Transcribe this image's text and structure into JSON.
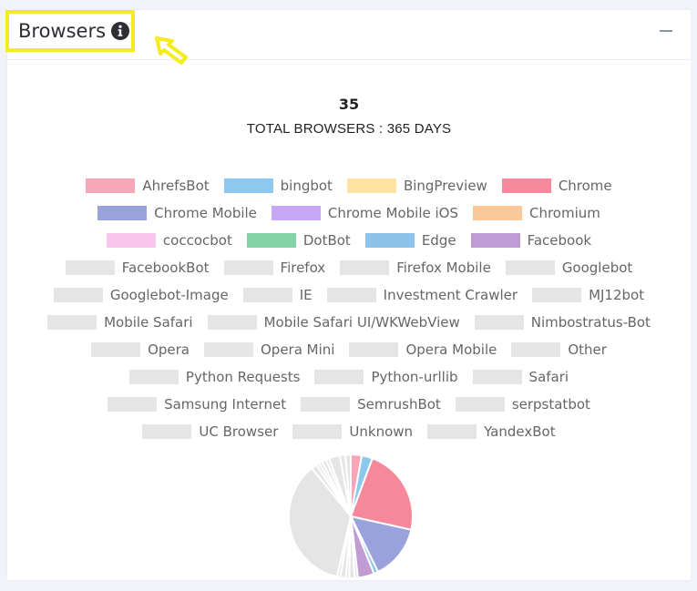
{
  "header": {
    "title": "Browsers",
    "info_icon": "info-circle-icon",
    "arrow_icon": "pointer-arrow-icon",
    "collapse_icon": "minus-icon",
    "highlight_color": "#f4ec1c"
  },
  "summary": {
    "total": "35",
    "subtitle": "TOTAL BROWSERS : 365 DAYS"
  },
  "legend_rows": [
    [
      0,
      1,
      2,
      3
    ],
    [
      4,
      5,
      6
    ],
    [
      7,
      8,
      9,
      10
    ],
    [
      11,
      12,
      13,
      14
    ],
    [
      15,
      16,
      17,
      18
    ],
    [
      19,
      20,
      21
    ],
    [
      22,
      23,
      24,
      25
    ],
    [
      26,
      27,
      28
    ],
    [
      29,
      30,
      31
    ],
    [
      32,
      33,
      34
    ]
  ],
  "chart_data": {
    "type": "pie",
    "title": "",
    "series": [
      {
        "name": "AhrefsBot",
        "color": "#f7a6b7",
        "value": 1
      },
      {
        "name": "bingbot",
        "color": "#8fc8ee",
        "value": 1
      },
      {
        "name": "BingPreview",
        "color": "#fde2a0",
        "value": 0
      },
      {
        "name": "Chrome",
        "color": "#f5899b",
        "value": 8
      },
      {
        "name": "Chrome Mobile",
        "color": "#9aa2dc",
        "value": 5
      },
      {
        "name": "Chrome Mobile iOS",
        "color": "#c8a8f4",
        "value": 0
      },
      {
        "name": "Chromium",
        "color": "#fbc89a",
        "value": 0
      },
      {
        "name": "coccocbot",
        "color": "#f8c5ee",
        "value": 0
      },
      {
        "name": "DotBot",
        "color": "#84d2a6",
        "value": 0
      },
      {
        "name": "Edge",
        "color": "#8dc3ea",
        "value": 0.4
      },
      {
        "name": "Facebook",
        "color": "#c19bd4",
        "value": 1.5
      },
      {
        "name": "FacebookBot",
        "color": "#e5e5e5",
        "value": 0.3
      },
      {
        "name": "Firefox",
        "color": "#e5e5e5",
        "value": 0.5
      },
      {
        "name": "Firefox Mobile",
        "color": "#e5e5e5",
        "value": 0.3
      },
      {
        "name": "Googlebot",
        "color": "#e5e5e5",
        "value": 0.5
      },
      {
        "name": "Googlebot-Image",
        "color": "#e5e5e5",
        "value": 0.3
      },
      {
        "name": "IE",
        "color": "#e5e5e5",
        "value": 0
      },
      {
        "name": "Investment Crawler",
        "color": "#e5e5e5",
        "value": 0
      },
      {
        "name": "MJ12bot",
        "color": "#e5e5e5",
        "value": 0
      },
      {
        "name": "Mobile Safari",
        "color": "#e5e5e5",
        "value": 12.5
      },
      {
        "name": "Mobile Safari UI/WKWebView",
        "color": "#e5e5e5",
        "value": 0.5
      },
      {
        "name": "Nimbostratus-Bot",
        "color": "#e5e5e5",
        "value": 0.3
      },
      {
        "name": "Opera",
        "color": "#e5e5e5",
        "value": 0.3
      },
      {
        "name": "Opera Mini",
        "color": "#e5e5e5",
        "value": 0
      },
      {
        "name": "Opera Mobile",
        "color": "#e5e5e5",
        "value": 0
      },
      {
        "name": "Other",
        "color": "#e5e5e5",
        "value": 0.4
      },
      {
        "name": "Python Requests",
        "color": "#e5e5e5",
        "value": 0.3
      },
      {
        "name": "Python-urllib",
        "color": "#e5e5e5",
        "value": 0
      },
      {
        "name": "Safari",
        "color": "#e5e5e5",
        "value": 1
      },
      {
        "name": "Samsung Internet",
        "color": "#e5e5e5",
        "value": 0.5
      },
      {
        "name": "SemrushBot",
        "color": "#e5e5e5",
        "value": 0
      },
      {
        "name": "serpstatbot",
        "color": "#e5e5e5",
        "value": 0
      },
      {
        "name": "UC Browser",
        "color": "#e5e5e5",
        "value": 0
      },
      {
        "name": "Unknown",
        "color": "#e5e5e5",
        "value": 0.5
      },
      {
        "name": "YandexBot",
        "color": "#e5e5e5",
        "value": 0
      }
    ]
  }
}
